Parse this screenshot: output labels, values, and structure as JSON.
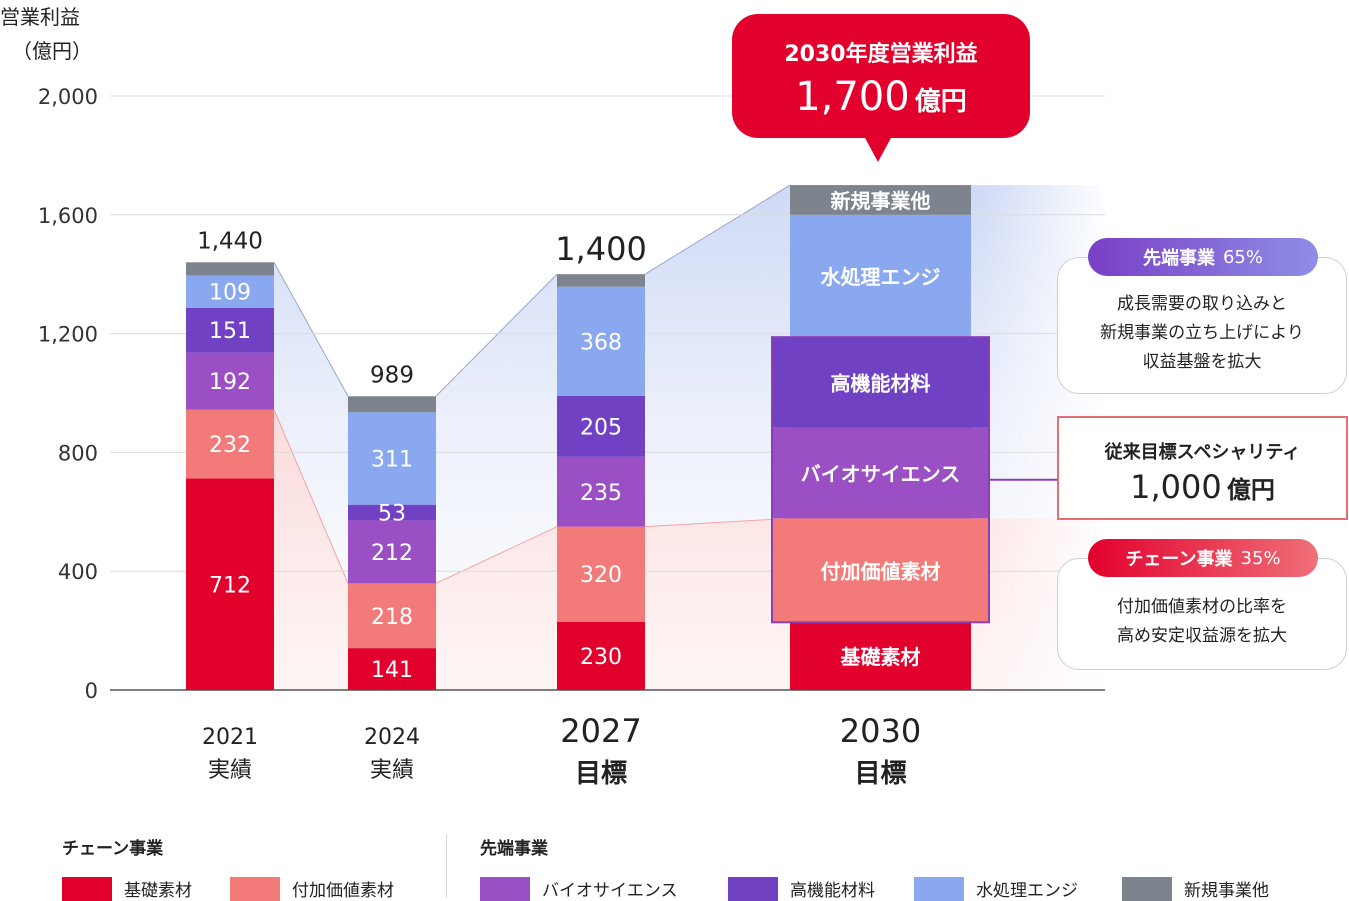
{
  "chart_data": {
    "type": "bar",
    "stacked": true,
    "ylabel": "営業利益",
    "yunit": "（億円）",
    "ylim": [
      0,
      2000
    ],
    "yticks": [
      "0",
      "400",
      "800",
      "1,200",
      "1,600",
      "2,000"
    ],
    "categories": [
      {
        "year": "2021",
        "sub": "実績"
      },
      {
        "year": "2024",
        "sub": "実績"
      },
      {
        "year": "2027",
        "sub": "目標"
      },
      {
        "year": "2030",
        "sub": "目標"
      }
    ],
    "totals": [
      "1,440",
      "989",
      "1,400",
      ""
    ],
    "series": [
      {
        "name": "基礎素材",
        "color": "#e2002d",
        "values": [
          712,
          141,
          230,
          228
        ],
        "labels": [
          "712",
          "141",
          "230",
          "基礎素材"
        ]
      },
      {
        "name": "付加価値素材",
        "color": "#f27a78",
        "values": [
          232,
          218,
          320,
          350
        ],
        "labels": [
          "232",
          "218",
          "320",
          "付加価値素材"
        ]
      },
      {
        "name": "バイオサイエンス",
        "color": "#9a4fc4",
        "values": [
          192,
          212,
          235,
          305
        ],
        "labels": [
          "192",
          "212",
          "235",
          "バイオサイエンス"
        ]
      },
      {
        "name": "高機能材料",
        "color": "#7141c4",
        "values": [
          151,
          53,
          205,
          305
        ],
        "labels": [
          "151",
          "53",
          "205",
          "高機能材料"
        ]
      },
      {
        "name": "水処理エンジ",
        "color": "#89a8ef",
        "values": [
          109,
          311,
          368,
          412
        ],
        "labels": [
          "109",
          "311",
          "368",
          "水処理エンジ"
        ]
      },
      {
        "name": "新規事業他",
        "color": "#7d848d",
        "values": [
          44,
          54,
          42,
          100
        ],
        "labels": [
          "",
          "",
          "",
          "新規事業他"
        ]
      }
    ]
  },
  "target": {
    "title": "2030年度営業利益",
    "amount": "1,700",
    "unit": "億円"
  },
  "callouts": {
    "advanced": {
      "title": "先端事業",
      "pct": "65%",
      "lines": [
        "成長需要の取り込みと",
        "新規事業の立ち上げにより",
        "収益基盤を拡大"
      ],
      "color": "#7b55d0"
    },
    "specialty": {
      "title": "従来目標スペシャリティ",
      "amount": "1,000",
      "unit": "億円"
    },
    "chain": {
      "title": "チェーン事業",
      "pct": "35%",
      "lines": [
        "付加価値素材の比率を",
        "高め安定収益源を拡大"
      ],
      "color": "#e2002d"
    }
  },
  "legend": {
    "chain_title": "チェーン事業",
    "advanced_title": "先端事業",
    "chain_items": [
      {
        "label": "基礎素材",
        "color": "#e2002d"
      },
      {
        "label": "付加価値素材",
        "color": "#f27a78"
      }
    ],
    "advanced_items": [
      {
        "label": "バイオサイエンス",
        "color": "#9a4fc4"
      },
      {
        "label": "高機能材料",
        "color": "#7141c4"
      },
      {
        "label": "水処理エンジ",
        "color": "#89a8ef"
      },
      {
        "label": "新規事業他",
        "color": "#7d848d"
      }
    ]
  }
}
